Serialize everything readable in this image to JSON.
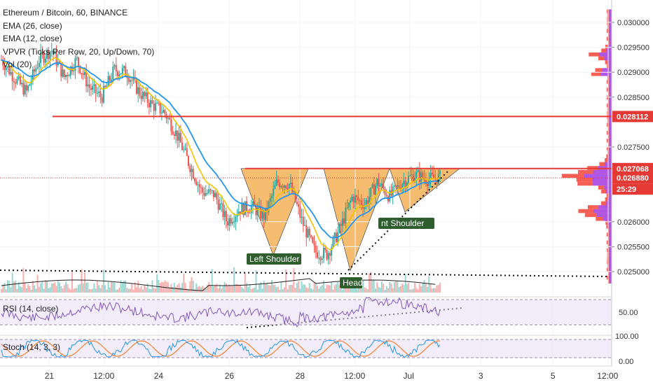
{
  "chart_data": {
    "type": "candlestick",
    "title": "Ethereum / Bitcoin, 60, BINANCE",
    "indicators": [
      "EMA (26, close)",
      "EMA (12, close)",
      "VPVR (Ticks Per Row, 20, Up/Down, 70)",
      "Vol (20)"
    ],
    "rsi_label": "RSI (14, close)",
    "stoch_label": "Stoch (14, 3, 3)",
    "x_tick_labels": [
      "21",
      "12:00",
      "24",
      "26",
      "28",
      "12:00",
      "Jul",
      "3",
      "5",
      "12:00"
    ],
    "y_tick_labels": [
      "0.030000",
      "0.029500",
      "0.029000",
      "0.028500",
      "0.027500",
      "0.026000",
      "0.025500",
      "0.025000"
    ],
    "ylim": [
      0.0248,
      0.0303
    ],
    "price_path": [
      [
        0.0293,
        0.0292
      ],
      [
        0.029,
        0.0288
      ],
      [
        0.0285,
        0.0287
      ],
      [
        0.0292,
        0.0293
      ],
      [
        0.0296,
        0.0293
      ],
      [
        0.029,
        0.0288
      ],
      [
        0.0293,
        0.0292
      ],
      [
        0.0289,
        0.0285
      ],
      [
        0.0284,
        0.0286
      ],
      [
        0.0289,
        0.0292
      ],
      [
        0.0291,
        0.0289
      ],
      [
        0.0287,
        0.0285
      ],
      [
        0.0284,
        0.0283
      ],
      [
        0.0283,
        0.0281
      ],
      [
        0.0279,
        0.0276
      ],
      [
        0.0273,
        0.027
      ],
      [
        0.0267,
        0.0265
      ],
      [
        0.0268,
        0.0263
      ],
      [
        0.0264,
        0.0256
      ],
      [
        0.026,
        0.0265
      ],
      [
        0.0262,
        0.0264
      ],
      [
        0.026,
        0.0262
      ],
      [
        0.0266,
        0.027
      ],
      [
        0.0266,
        0.0269
      ],
      [
        0.0262,
        0.0258
      ],
      [
        0.0255,
        0.0253
      ],
      [
        0.0251,
        0.0256
      ],
      [
        0.0258,
        0.0259
      ],
      [
        0.0262,
        0.0268
      ],
      [
        0.0262,
        0.0265
      ],
      [
        0.0267,
        0.0269
      ],
      [
        0.0264,
        0.0266
      ],
      [
        0.0268,
        0.0268
      ],
      [
        0.0269,
        0.027
      ],
      [
        0.0268,
        0.0269
      ],
      [
        0.0269,
        0.02688
      ]
    ],
    "price_labels": {
      "resistance_upper": "0.028112",
      "resistance_neckline": "0.027068",
      "last_price": "0.026880",
      "countdown": "25:29"
    },
    "annotations": [
      "Left Shoulder",
      "Head",
      "nt Shoulder"
    ],
    "rsi_tick_label": "50.00",
    "stoch_tick_labels": [
      "100.00",
      "0.00"
    ],
    "colors": {
      "up": "#26a69a",
      "down": "#ef5350",
      "ema_fast": "#f5c400",
      "ema_slow": "#2196f3",
      "resistance": "#e53935",
      "pattern_fill": "#f4a640",
      "rsi_line": "#7e57c2",
      "stoch_k": "#2196f3",
      "stoch_d": "#ff6d00",
      "vpvr_up": "#a855f7",
      "vpvr_down": "#f44336"
    }
  }
}
